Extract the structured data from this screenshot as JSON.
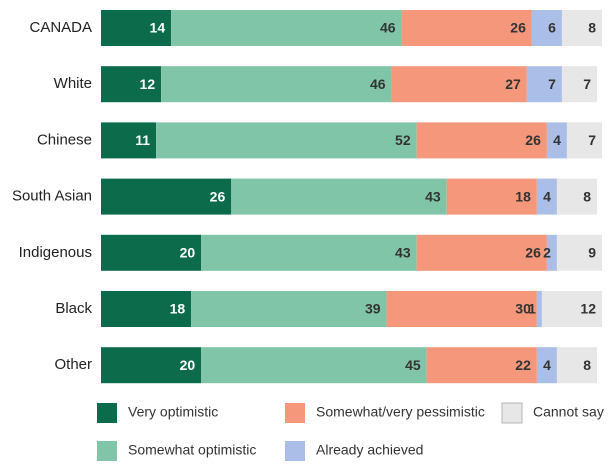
{
  "chart_data": {
    "type": "bar",
    "orientation": "horizontal",
    "stacked": true,
    "categories": [
      "CANADA",
      "White",
      "Chinese",
      "South Asian",
      "Indigenous",
      "Black",
      "Other"
    ],
    "xlim": [
      0,
      100
    ],
    "series": [
      {
        "name": "Very optimistic",
        "color": "#0b6b4b",
        "label_color": "#ffffff",
        "values": [
          14,
          12,
          11,
          26,
          20,
          18,
          20
        ]
      },
      {
        "name": "Somewhat optimistic",
        "color": "#80c5a7",
        "label_color": "#333333",
        "values": [
          46,
          46,
          52,
          43,
          43,
          39,
          45
        ]
      },
      {
        "name": "Somewhat/very pessimistic",
        "color": "#f4977b",
        "label_color": "#333333",
        "values": [
          26,
          27,
          26,
          18,
          26,
          30,
          22
        ]
      },
      {
        "name": "Already achieved",
        "color": "#aabee7",
        "label_color": "#333333",
        "values": [
          6,
          7,
          4,
          4,
          2,
          1,
          4
        ]
      },
      {
        "name": "Cannot say",
        "color": "#e7e7e8",
        "label_color": "#333333",
        "values": [
          8,
          7,
          7,
          8,
          9,
          12,
          8
        ]
      }
    ]
  }
}
